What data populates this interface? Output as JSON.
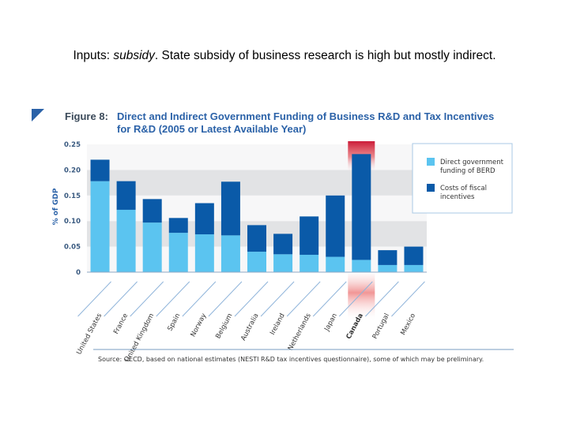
{
  "heading": {
    "prefix": "Inputs: ",
    "italic": "subsidy",
    "rest": ".  State subsidy of business research is high but mostly indirect."
  },
  "chart_data": {
    "type": "bar",
    "stacked": true,
    "figure_label": "Figure 8:",
    "title_line1": "Direct and Indirect Government Funding of Business R&D and Tax Incentives",
    "title_line2": "for R&D (2005 or Latest Available Year)",
    "ylabel": "% of GDP",
    "ylim": [
      0,
      0.25
    ],
    "yticks": [
      "0",
      "0.05",
      "0.10",
      "0.15",
      "0.20",
      "0.25"
    ],
    "ytick_values": [
      0,
      0.05,
      0.1,
      0.15,
      0.2,
      0.25
    ],
    "grid": "alternating horizontal bands",
    "legend_position": "top-right",
    "categories": [
      "United States",
      "France",
      "United Kingdom",
      "Spain",
      "Norway",
      "Belgium",
      "Australia",
      "Ireland",
      "Netherlands",
      "Japan",
      "Canada",
      "Portugal",
      "Mexico"
    ],
    "highlighted_category": "Canada",
    "highlight_column": 10,
    "series": [
      {
        "name": "Direct government funding of BERD",
        "color": "#5bc4f0",
        "values": [
          0.178,
          0.122,
          0.097,
          0.077,
          0.074,
          0.072,
          0.04,
          0.035,
          0.034,
          0.03,
          0.024,
          0.014,
          0.014
        ]
      },
      {
        "name": "Costs of fiscal incentives",
        "color": "#0a5aa8",
        "values": [
          0.042,
          0.056,
          0.046,
          0.029,
          0.061,
          0.105,
          0.052,
          0.04,
          0.075,
          0.12,
          0.207,
          0.029,
          0.036
        ]
      }
    ],
    "source": "Source: OECD, based on national estimates (NESTI R&D tax incentives questionnaire), some of which may be preliminary."
  }
}
